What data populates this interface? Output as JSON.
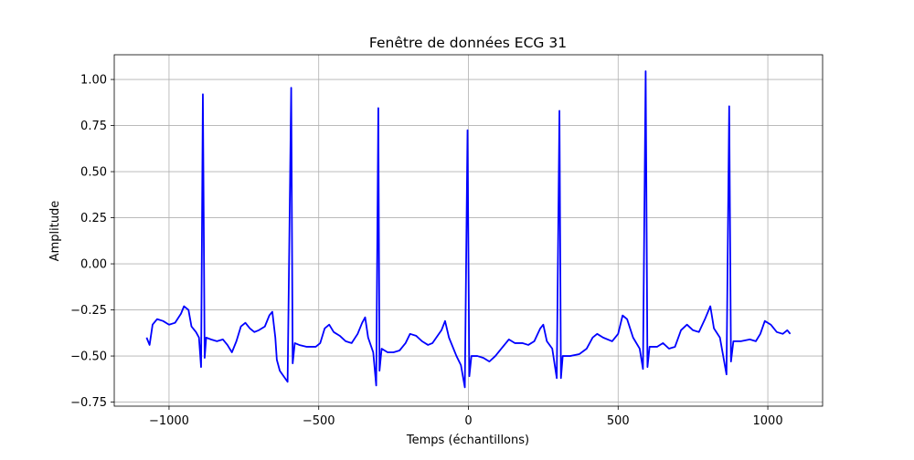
{
  "chart_data": {
    "type": "line",
    "title": "Fenêtre de données ECG 31",
    "xlabel": "Temps (échantillons)",
    "ylabel": "Amplitude",
    "xlim": [
      -1183,
      1183
    ],
    "ylim": [
      -0.772,
      1.134
    ],
    "grid": true,
    "xticks": [
      {
        "value": -1000,
        "label": "−1000"
      },
      {
        "value": -500,
        "label": "−500"
      },
      0,
      500,
      1000
    ],
    "yticks": [
      {
        "value": -0.75,
        "label": "−0.75"
      },
      {
        "value": -0.5,
        "label": "−0.50"
      },
      {
        "value": -0.25,
        "label": "−0.25"
      },
      {
        "value": 0,
        "label": "0.00"
      },
      0.25,
      {
        "value": 0.5,
        "label": "0.50"
      },
      0.75,
      {
        "value": 1,
        "label": "1.00"
      }
    ],
    "series": [
      {
        "color": "#0000ff",
        "x": [
          -1075,
          -1065,
          -1055,
          -1040,
          -1020,
          -1000,
          -980,
          -960,
          -950,
          -935,
          -925,
          -910,
          -900,
          -893,
          -887,
          -881,
          -876,
          -860,
          -840,
          -820,
          -805,
          -790,
          -775,
          -760,
          -745,
          -730,
          -715,
          -700,
          -680,
          -665,
          -655,
          -645,
          -640,
          -630,
          -604,
          -592,
          -587,
          -580,
          -565,
          -540,
          -510,
          -495,
          -480,
          -465,
          -450,
          -430,
          -410,
          -390,
          -370,
          -355,
          -345,
          -335,
          -318,
          -308,
          -301,
          -297,
          -290,
          -270,
          -250,
          -230,
          -210,
          -195,
          -175,
          -155,
          -135,
          -120,
          -90,
          -78,
          -65,
          -40,
          -25,
          -12,
          -3,
          3,
          10,
          30,
          50,
          70,
          90,
          110,
          135,
          155,
          180,
          200,
          220,
          240,
          250,
          262,
          280,
          295,
          304,
          309,
          315,
          340,
          370,
          395,
          415,
          430,
          450,
          480,
          500,
          515,
          530,
          550,
          572,
          583,
          592,
          598,
          605,
          630,
          650,
          670,
          690,
          710,
          730,
          750,
          770,
          790,
          808,
          820,
          840,
          862,
          871,
          877,
          885,
          910,
          940,
          960,
          975,
          990,
          1010,
          1030,
          1050,
          1065,
          1075
        ],
        "values": [
          -0.4,
          -0.44,
          -0.33,
          -0.3,
          -0.31,
          -0.33,
          -0.32,
          -0.27,
          -0.23,
          -0.25,
          -0.34,
          -0.37,
          -0.4,
          -0.56,
          0.92,
          -0.51,
          -0.4,
          -0.41,
          -0.42,
          -0.41,
          -0.44,
          -0.48,
          -0.42,
          -0.34,
          -0.32,
          -0.35,
          -0.37,
          -0.36,
          -0.34,
          -0.28,
          -0.26,
          -0.4,
          -0.52,
          -0.58,
          -0.64,
          0.955,
          -0.54,
          -0.43,
          -0.44,
          -0.45,
          -0.45,
          -0.43,
          -0.35,
          -0.33,
          -0.37,
          -0.39,
          -0.42,
          -0.43,
          -0.38,
          -0.32,
          -0.29,
          -0.4,
          -0.48,
          -0.66,
          0.845,
          -0.58,
          -0.46,
          -0.48,
          -0.48,
          -0.47,
          -0.43,
          -0.38,
          -0.39,
          -0.42,
          -0.44,
          -0.43,
          -0.36,
          -0.31,
          -0.4,
          -0.5,
          -0.55,
          -0.67,
          0.725,
          -0.61,
          -0.5,
          -0.5,
          -0.51,
          -0.53,
          -0.5,
          -0.46,
          -0.41,
          -0.43,
          -0.43,
          -0.44,
          -0.42,
          -0.35,
          -0.33,
          -0.42,
          -0.46,
          -0.62,
          0.83,
          -0.62,
          -0.5,
          -0.5,
          -0.49,
          -0.46,
          -0.4,
          -0.38,
          -0.4,
          -0.42,
          -0.38,
          -0.28,
          -0.3,
          -0.4,
          -0.46,
          -0.57,
          1.045,
          -0.56,
          -0.45,
          -0.45,
          -0.43,
          -0.46,
          -0.45,
          -0.36,
          -0.33,
          -0.36,
          -0.37,
          -0.3,
          -0.23,
          -0.35,
          -0.4,
          -0.6,
          0.855,
          -0.53,
          -0.42,
          -0.42,
          -0.41,
          -0.42,
          -0.38,
          -0.31,
          -0.33,
          -0.37,
          -0.38,
          -0.36,
          -0.38
        ]
      }
    ]
  }
}
